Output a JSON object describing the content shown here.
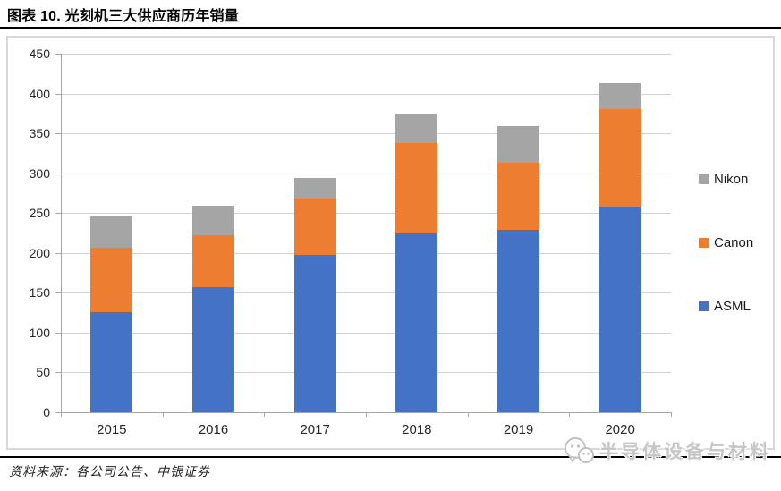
{
  "header": {
    "title": "图表 10. 光刻机三大供应商历年销量"
  },
  "chart_data": {
    "type": "bar",
    "stacked": true,
    "title": "光刻机三大供应商历年销量",
    "categories": [
      "2015",
      "2016",
      "2017",
      "2018",
      "2019",
      "2020"
    ],
    "series": [
      {
        "name": "ASML",
        "color": "#4472C4",
        "values": [
          126,
          157,
          198,
          224,
          229,
          258
        ]
      },
      {
        "name": "Canon",
        "color": "#ED7D31",
        "values": [
          80,
          65,
          70,
          114,
          84,
          122
        ]
      },
      {
        "name": "Nikon",
        "color": "#A5A5A5",
        "values": [
          40,
          37,
          26,
          36,
          46,
          33
        ]
      }
    ],
    "totals": [
      246,
      259,
      294,
      374,
      359,
      413
    ],
    "xlabel": "",
    "ylabel": "",
    "ylim": [
      0,
      450
    ],
    "yticks": [
      0,
      50,
      100,
      150,
      200,
      250,
      300,
      350,
      400,
      450
    ],
    "grid": true,
    "legend_position": "right",
    "legend_order": [
      "Nikon",
      "Canon",
      "ASML"
    ]
  },
  "footer": {
    "source_label": "资料来源：各公司公告、中银证券"
  },
  "watermark": {
    "text": "半导体设备与材料",
    "icon": "wechat-logo"
  },
  "colors": {
    "asml_blue": "#4472C4",
    "canon_orange": "#ED7D31",
    "nikon_gray": "#A5A5A5",
    "gridline": "#D2D2D2",
    "axis": "#A6A6A6",
    "rule_black": "#000000",
    "watermark_gray": "#C6C6C6"
  }
}
